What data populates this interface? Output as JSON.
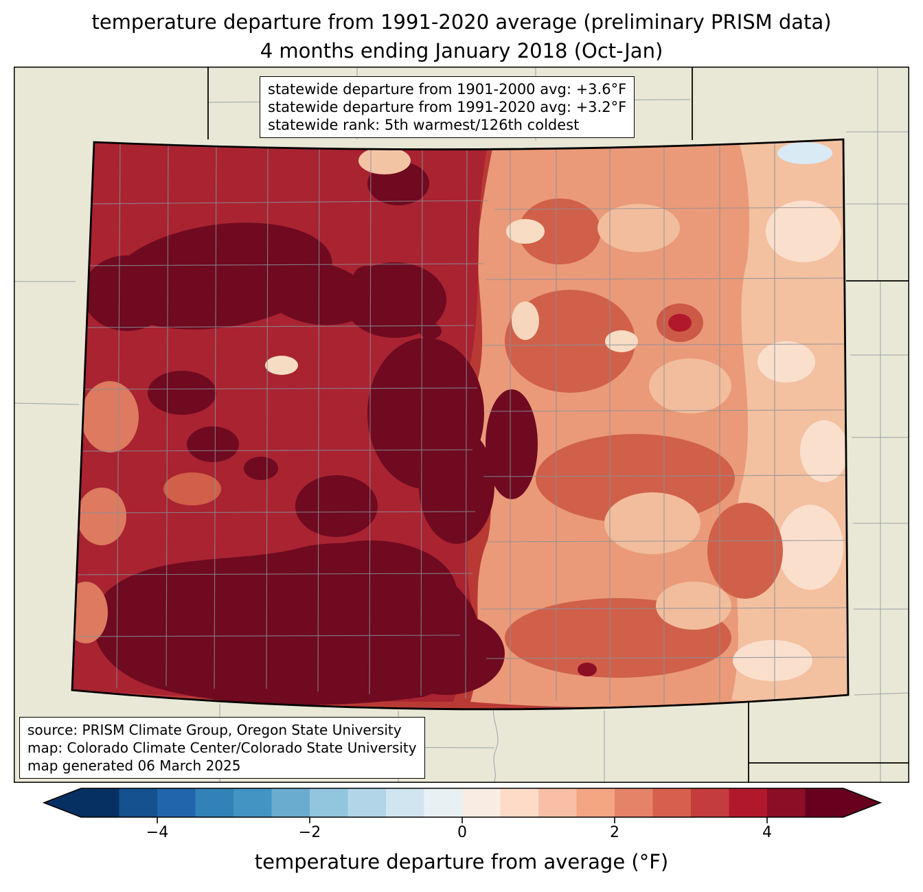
{
  "page_title": {
    "line1": "temperature departure from 1991-2020 average (preliminary PRISM data)",
    "line2": "4 months ending January 2018 (Oct-Jan)"
  },
  "stats_box": {
    "lines": [
      "statewide departure from 1901-2000 avg: +3.6°F",
      "statewide departure from 1991-2020 avg: +3.2°F",
      "statewide rank: 5th warmest/126th coldest"
    ]
  },
  "source_box": {
    "lines": [
      "source: PRISM Climate Group, Oregon State University",
      "map: Colorado Climate Center/Colorado State University",
      "map generated 06 March 2025"
    ]
  },
  "colorbar": {
    "label": "temperature departure from average (°F)",
    "ticks": [
      "−4",
      "−2",
      "0",
      "2",
      "4"
    ],
    "tick_values": [
      -4,
      -2,
      0,
      2,
      4
    ],
    "range": [
      -5,
      5
    ],
    "step": 0.5,
    "colors": [
      "#053061",
      "#15508f",
      "#2166ac",
      "#3282b8",
      "#4393c3",
      "#6aacd0",
      "#92c5de",
      "#b2d5e7",
      "#d1e5f0",
      "#e9f0f4",
      "#f9ece2",
      "#fddbc7",
      "#f8bfa4",
      "#f4a582",
      "#e58368",
      "#d6604d",
      "#c43c3d",
      "#b2182b",
      "#8c0d26",
      "#67001f"
    ]
  },
  "map": {
    "region": "Colorado",
    "type": "temperature departure choropleth (PRISM)",
    "outside_fill": "#e9e8d6",
    "state_border_color": "#000000",
    "county_line_color": "#8b9199",
    "dominant_values": "west: +4 to +5°F (dark red/maroon), east plains: +1 to +2°F (salmon to pale pink)"
  }
}
